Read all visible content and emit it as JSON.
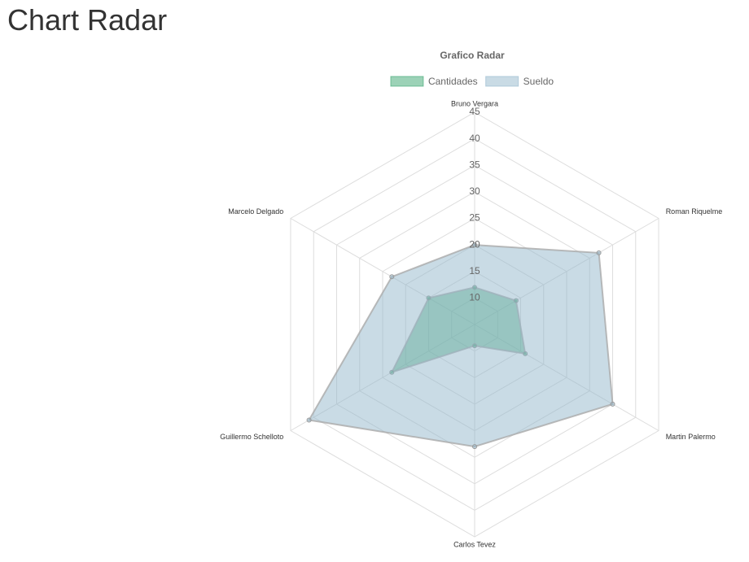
{
  "page_title": "Chart Radar",
  "chart_data": {
    "type": "radar",
    "title": "Grafico Radar",
    "categories": [
      "Bruno Vergara",
      "Roman Riquelme",
      "Martin Palermo",
      "Carlos Tevez",
      "Guillermo Schelloto",
      "Marcelo Delgado"
    ],
    "series": [
      {
        "name": "Cantidades",
        "color": "#3aa56f",
        "values": [
          12,
          14,
          16,
          9,
          23,
          15
        ]
      },
      {
        "name": "Sueldo",
        "color": "#94b8cb",
        "values": [
          20,
          32,
          35,
          28,
          41,
          23
        ]
      }
    ],
    "rlim": [
      5,
      45
    ],
    "rticks": [
      10,
      15,
      20,
      25,
      30,
      35,
      40,
      45
    ],
    "grid": true
  }
}
